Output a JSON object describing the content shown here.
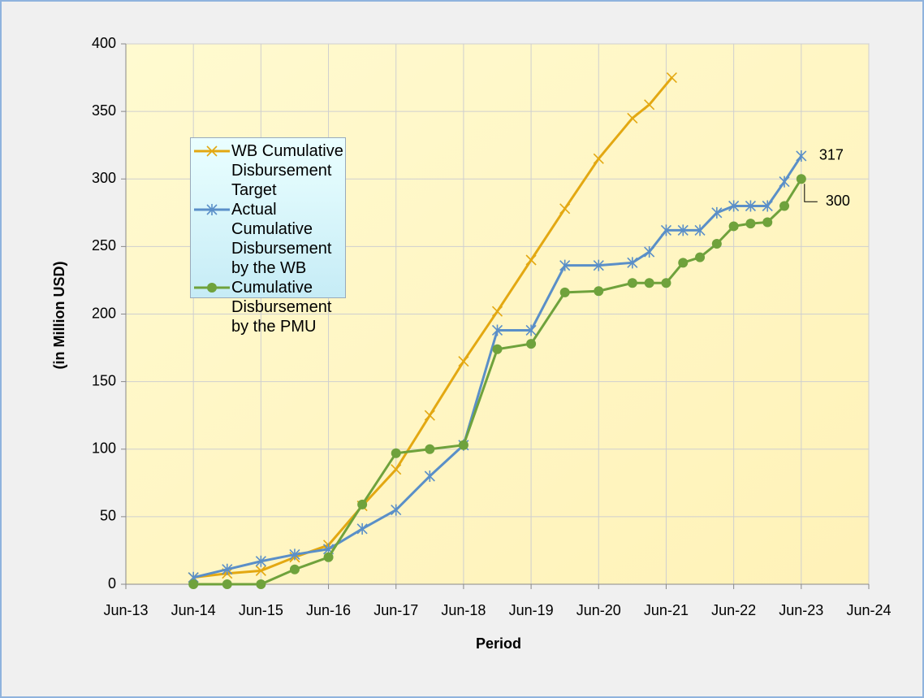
{
  "chart_data": {
    "type": "line",
    "xlabel": "Period",
    "ylabel": "(in Million USD)",
    "xlim": [
      "2013-06",
      "2024-06"
    ],
    "xticks": [
      {
        "value": "2013-06",
        "label": "Jun-13"
      },
      {
        "value": "2014-06",
        "label": "Jun-14"
      },
      {
        "value": "2015-06",
        "label": "Jun-15"
      },
      {
        "value": "2016-06",
        "label": "Jun-16"
      },
      {
        "value": "2017-06",
        "label": "Jun-17"
      },
      {
        "value": "2018-06",
        "label": "Jun-18"
      },
      {
        "value": "2019-06",
        "label": "Jun-19"
      },
      {
        "value": "2020-06",
        "label": "Jun-20"
      },
      {
        "value": "2021-06",
        "label": "Jun-21"
      },
      {
        "value": "2022-06",
        "label": "Jun-22"
      },
      {
        "value": "2023-06",
        "label": "Jun-23"
      },
      {
        "value": "2024-06",
        "label": "Jun-24"
      }
    ],
    "ylim": [
      0,
      400
    ],
    "yticks": [
      0,
      50,
      100,
      150,
      200,
      250,
      300,
      350,
      400
    ],
    "grid": true,
    "legend": "upper left",
    "series": [
      {
        "name": "WB Cumulative Disbursement Target",
        "color": "#e3a812",
        "marker": "x",
        "x": [
          "2014-06",
          "2014-12",
          "2015-06",
          "2015-12",
          "2016-06",
          "2016-12",
          "2017-06",
          "2017-12",
          "2018-06",
          "2018-12",
          "2019-06",
          "2019-12",
          "2020-06",
          "2020-12",
          "2021-03",
          "2021-07"
        ],
        "values": [
          5,
          8,
          10,
          20,
          29,
          58,
          85,
          125,
          165,
          202,
          240,
          278,
          315,
          345,
          355,
          375
        ]
      },
      {
        "name": "Actual  Cumulative Disbursement by the WB",
        "color": "#5a8fc8",
        "marker": "asterisk",
        "x": [
          "2014-06",
          "2014-12",
          "2015-06",
          "2015-12",
          "2016-06",
          "2016-12",
          "2017-06",
          "2017-12",
          "2018-06",
          "2018-12",
          "2019-06",
          "2019-12",
          "2020-06",
          "2020-12",
          "2021-03",
          "2021-06",
          "2021-09",
          "2021-12",
          "2022-03",
          "2022-06",
          "2022-09",
          "2022-12",
          "2023-03",
          "2023-06"
        ],
        "values": [
          5,
          11,
          17,
          22,
          26,
          41,
          55,
          80,
          103,
          188,
          188,
          236,
          236,
          238,
          246,
          262,
          262,
          262,
          275,
          280,
          280,
          280,
          298,
          317
        ],
        "value_labels": [
          null,
          null,
          null,
          null,
          null,
          null,
          null,
          null,
          null,
          null,
          null,
          null,
          null,
          null,
          null,
          null,
          null,
          null,
          null,
          null,
          null,
          null,
          null,
          "317"
        ]
      },
      {
        "name": "Cumulative Disbursement by the PMU",
        "color": "#6fa23c",
        "marker": "circle",
        "x": [
          "2014-06",
          "2014-12",
          "2015-06",
          "2015-12",
          "2016-06",
          "2016-12",
          "2017-06",
          "2017-12",
          "2018-06",
          "2018-12",
          "2019-06",
          "2019-12",
          "2020-06",
          "2020-12",
          "2021-03",
          "2021-06",
          "2021-09",
          "2021-12",
          "2022-03",
          "2022-06",
          "2022-09",
          "2022-12",
          "2023-03",
          "2023-06"
        ],
        "values": [
          0,
          0,
          0,
          11,
          20,
          59,
          97,
          100,
          103,
          174,
          178,
          216,
          217,
          223,
          223,
          223,
          238,
          242,
          252,
          265,
          267,
          268,
          280,
          300
        ],
        "value_labels": [
          null,
          null,
          null,
          null,
          null,
          null,
          null,
          null,
          null,
          null,
          null,
          null,
          null,
          null,
          null,
          null,
          null,
          null,
          null,
          null,
          null,
          null,
          null,
          "300"
        ]
      }
    ]
  }
}
